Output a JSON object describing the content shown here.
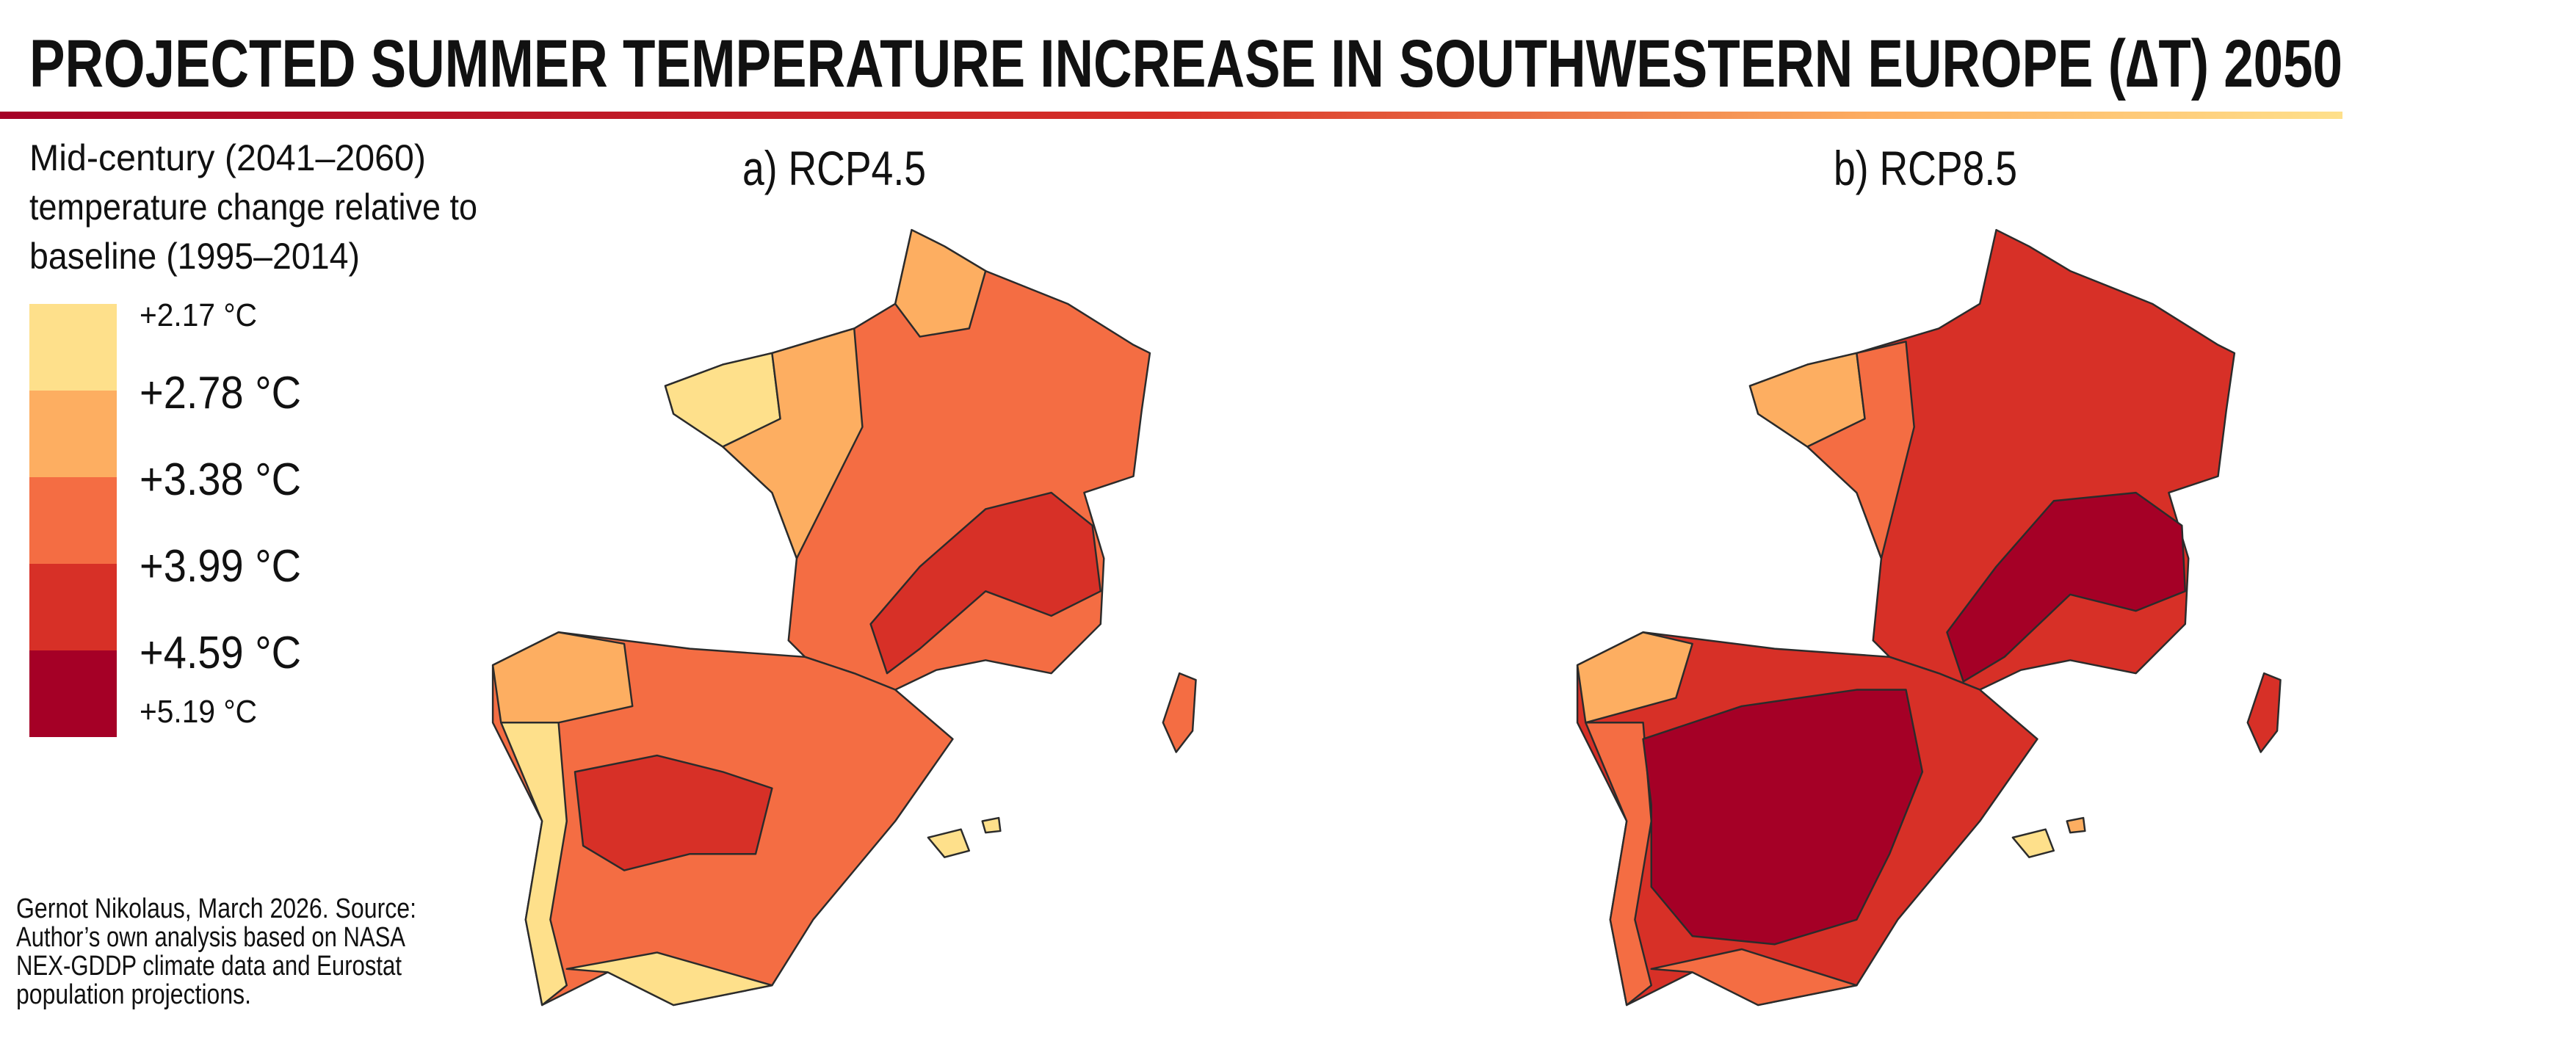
{
  "header": {
    "title": "PROJECTED SUMMER TEMPERATURE INCREASE IN SOUTHWESTERN EUROPE (∆T) 2050"
  },
  "legend": {
    "title_lines": [
      "Mid-century (2041–2060)",
      "temperature change relative to",
      "baseline (1995–2014)"
    ],
    "colors": [
      "#fee08b",
      "#fdae61",
      "#f46d43",
      "#d73027",
      "#a50026"
    ],
    "labels": [
      "+2.17 °C",
      "+2.78 °C",
      "+3.38 °C",
      "+3.99 °C",
      "+4.59 °C",
      "+5.19 °C"
    ]
  },
  "panels": [
    {
      "title": "a) RCP4.5"
    },
    {
      "title": "b) RCP8.5"
    }
  ],
  "source_lines": [
    "Gernot Nikolaus, March 2026. Source:",
    "Author’s own analysis based on NASA",
    "NEX-GDDP climate data and Eurostat",
    "population projections."
  ]
}
